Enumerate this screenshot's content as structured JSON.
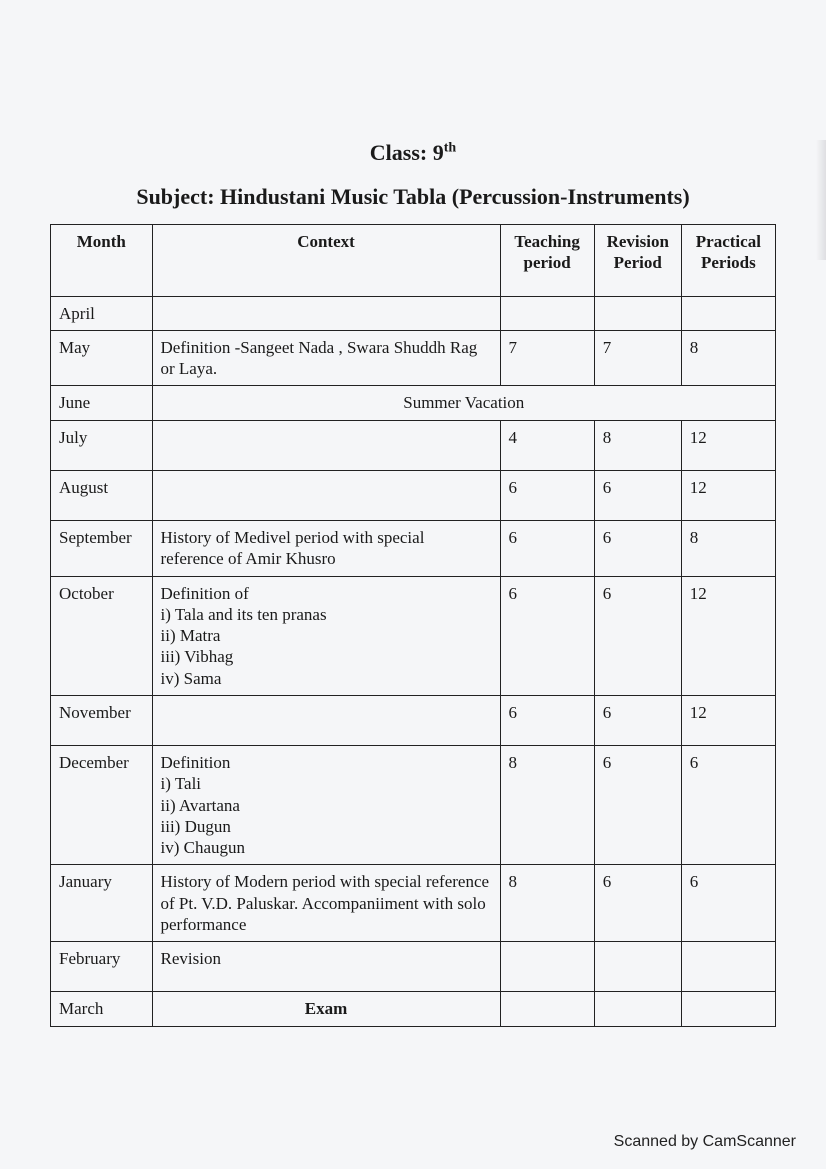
{
  "header": {
    "class_label": "Class: 9",
    "class_sup": "th",
    "subject_label": "Subject: Hindustani Music Tabla (Percussion-Instruments)"
  },
  "table": {
    "columns": [
      "Month",
      "Context",
      "Teaching period",
      "Revision Period",
      "Practical Periods"
    ],
    "rows": [
      {
        "month": "April",
        "context": "",
        "teaching": "",
        "revision": "",
        "practical": ""
      },
      {
        "month": "May",
        "context": "Definition -Sangeet Nada , Swara Shuddh Rag or Laya.",
        "teaching": "7",
        "revision": "7",
        "practical": "8"
      },
      {
        "month": "June",
        "span_context": "Summer Vacation"
      },
      {
        "month": "July",
        "context": "",
        "teaching": "4",
        "revision": "8",
        "practical": "12",
        "tall": true
      },
      {
        "month": "August",
        "context": "",
        "teaching": "6",
        "revision": "6",
        "practical": "12",
        "tall": true
      },
      {
        "month": "September",
        "context": "History of Medivel period with special reference of Amir Khusro",
        "teaching": "6",
        "revision": "6",
        "practical": "8"
      },
      {
        "month": "October",
        "context": "Definition of\ni) Tala and its ten pranas\nii) Matra\niii) Vibhag\niv) Sama",
        "teaching": "6",
        "revision": "6",
        "practical": "12"
      },
      {
        "month": "November",
        "context": "",
        "teaching": "6",
        "revision": "6",
        "practical": "12",
        "tall": true
      },
      {
        "month": "December",
        "context": "Definition\ni) Tali\nii) Avartana\niii) Dugun\niv) Chaugun",
        "teaching": "8",
        "revision": "6",
        "practical": "6"
      },
      {
        "month": "January",
        "context": "History of Modern period  with special reference of Pt. V.D. Paluskar. Accompaniiment  with solo performance",
        "teaching": "8",
        "revision": "6",
        "practical": "6"
      },
      {
        "month": "February",
        "context": "Revision",
        "teaching": "",
        "revision": "",
        "practical": "",
        "tall": true
      },
      {
        "month": "March",
        "context_bold": "Exam",
        "teaching": "",
        "revision": "",
        "practical": ""
      }
    ]
  },
  "footer": {
    "scanned_by": "Scanned by CamScanner"
  }
}
